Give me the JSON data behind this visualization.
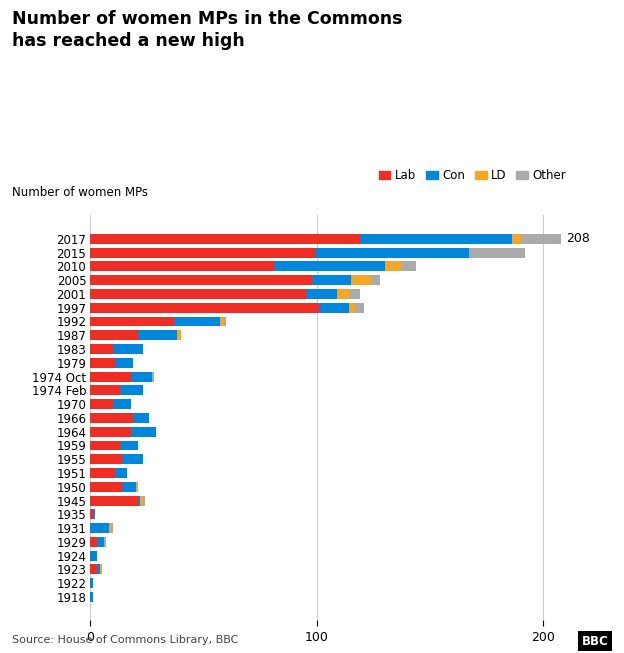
{
  "title": "Number of women MPs in the Commons\nhas reached a new high",
  "ylabel": "Number of women MPs",
  "source": "Source: House of Commons Library, BBC",
  "years": [
    "1918",
    "1922",
    "1923",
    "1924",
    "1929",
    "1931",
    "1935",
    "1945",
    "1950",
    "1951",
    "1955",
    "1959",
    "1964",
    "1966",
    "1970",
    "1974 Feb",
    "1974 Oct",
    "1979",
    "1983",
    "1987",
    "1992",
    "1997",
    "2001",
    "2005",
    "2010",
    "2015",
    "2017"
  ],
  "lab": [
    0,
    0,
    3,
    0,
    3,
    0,
    1,
    21,
    14,
    11,
    14,
    13,
    18,
    19,
    10,
    13,
    18,
    11,
    10,
    21,
    37,
    101,
    95,
    98,
    81,
    99,
    119
  ],
  "con": [
    1,
    1,
    1,
    3,
    3,
    8,
    1,
    1,
    6,
    5,
    9,
    8,
    11,
    7,
    8,
    10,
    9,
    8,
    13,
    17,
    20,
    13,
    14,
    17,
    49,
    68,
    67
  ],
  "ld": [
    0,
    0,
    1,
    0,
    0,
    1,
    0,
    1,
    1,
    0,
    0,
    0,
    0,
    0,
    0,
    0,
    0,
    0,
    0,
    2,
    2,
    3,
    5,
    9,
    7,
    0,
    4
  ],
  "other": [
    0,
    0,
    0,
    0,
    1,
    1,
    0,
    1,
    0,
    0,
    0,
    0,
    0,
    0,
    0,
    0,
    1,
    0,
    0,
    0,
    1,
    4,
    5,
    4,
    7,
    25,
    18
  ],
  "total_2017_label": "208",
  "colors": {
    "lab": "#ee2e24",
    "con": "#0087dc",
    "ld": "#f5a623",
    "other": "#aaaaaa"
  },
  "xlim": [
    0,
    215
  ],
  "xticks": [
    0,
    100,
    200
  ],
  "background": "#ffffff",
  "grid_color": "#cccccc"
}
